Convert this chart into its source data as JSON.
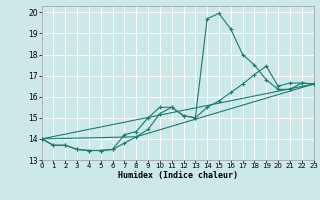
{
  "xlabel": "Humidex (Indice chaleur)",
  "background_color": "#cce8e8",
  "grid_color": "#ffffff",
  "line_color": "#1a7a6e",
  "xlim": [
    0,
    23
  ],
  "ylim": [
    13,
    20.3
  ],
  "yticks": [
    13,
    14,
    15,
    16,
    17,
    18,
    19,
    20
  ],
  "xticks": [
    0,
    1,
    2,
    3,
    4,
    5,
    6,
    7,
    8,
    9,
    10,
    11,
    12,
    13,
    14,
    15,
    16,
    17,
    18,
    19,
    20,
    21,
    22,
    23
  ],
  "series": [
    {
      "x": [
        0,
        1,
        2,
        3,
        4,
        5,
        6,
        7,
        8,
        9,
        10,
        11,
        12,
        13,
        14,
        15,
        16,
        17,
        18,
        19,
        20,
        21,
        22,
        23
      ],
      "y": [
        14.0,
        13.7,
        13.7,
        13.5,
        13.45,
        13.45,
        13.5,
        14.2,
        14.35,
        15.0,
        15.5,
        15.5,
        15.1,
        15.0,
        19.7,
        19.95,
        19.2,
        18.0,
        17.5,
        16.8,
        16.35,
        16.35,
        16.65,
        16.6
      ],
      "marker": true
    },
    {
      "x": [
        0,
        1,
        2,
        3,
        4,
        5,
        6,
        7,
        8,
        9,
        10,
        11,
        12,
        13,
        14,
        15,
        16,
        17,
        18,
        19,
        20,
        21,
        22,
        23
      ],
      "y": [
        14.0,
        13.7,
        13.7,
        13.5,
        13.45,
        13.45,
        13.5,
        13.8,
        14.1,
        14.45,
        15.2,
        15.5,
        15.1,
        15.0,
        15.5,
        15.8,
        16.2,
        16.6,
        17.05,
        17.45,
        16.5,
        16.65,
        16.65,
        16.6
      ],
      "marker": true
    },
    {
      "x": [
        0,
        23
      ],
      "y": [
        14.0,
        16.6
      ],
      "marker": false
    },
    {
      "x": [
        0,
        8,
        23
      ],
      "y": [
        14.0,
        14.1,
        16.6
      ],
      "marker": false
    }
  ]
}
